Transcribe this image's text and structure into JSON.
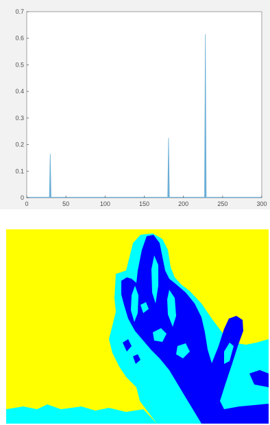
{
  "chart_data": [
    {
      "type": "area",
      "title": "",
      "xlabel": "",
      "ylabel": "",
      "xlim": [
        0,
        300
      ],
      "ylim": [
        0,
        0.7
      ],
      "grid": false,
      "x_ticks": [
        0,
        50,
        100,
        150,
        200,
        250,
        300
      ],
      "y_ticks": [
        0,
        0.1,
        0.2,
        0.3,
        0.4,
        0.5,
        0.6,
        0.7
      ],
      "x_tick_labels": [
        "0",
        "50",
        "100",
        "150",
        "200",
        "250",
        "300"
      ],
      "y_tick_labels": [
        "0",
        "0.1",
        "0.2",
        "0.3",
        "0.4",
        "0.5",
        "0.6",
        "0.7"
      ],
      "series": [
        {
          "color": "#6aaed6",
          "peaks": [
            {
              "x": 30,
              "y": 0.165
            },
            {
              "x": 181,
              "y": 0.225
            },
            {
              "x": 228,
              "y": 0.615
            }
          ],
          "baseline": 0.003
        }
      ]
    },
    {
      "type": "heatmap",
      "title": "",
      "grid": false,
      "palette": {
        "background": "#ffff00",
        "mid": "#00ffff",
        "high": "#0000ff"
      }
    }
  ]
}
